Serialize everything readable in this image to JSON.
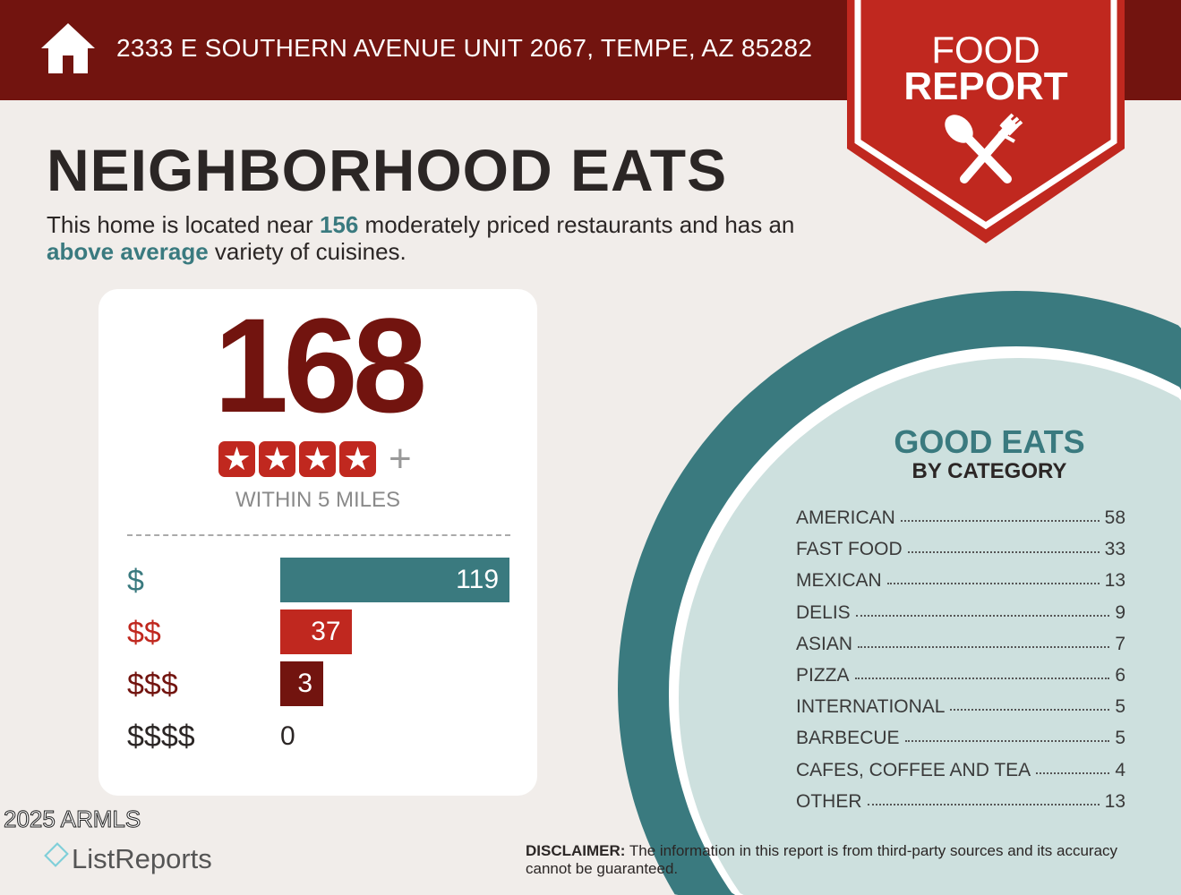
{
  "header": {
    "address": "2333 E SOUTHERN AVENUE UNIT 2067, TEMPE, AZ 85282",
    "icon": "house-icon"
  },
  "banner": {
    "line1": "FOOD",
    "line2": "REPORT",
    "icon": "spoon-fork-icon"
  },
  "title": "NEIGHBORHOOD EATS",
  "intro": {
    "p1": "This home is located near ",
    "count": "156",
    "p2": " moderately priced restaurants and has an ",
    "variety": "above average",
    "p3": " variety of cuisines."
  },
  "summary": {
    "total": "168",
    "stars": 4,
    "plus": "+",
    "within": "WITHIN 5 MILES"
  },
  "price_tiers": [
    {
      "label": "$",
      "value": 119,
      "color": "#3a7a7f"
    },
    {
      "label": "$$",
      "value": 37,
      "color": "#c0281f"
    },
    {
      "label": "$$$",
      "value": 3,
      "color": "#72140f"
    },
    {
      "label": "$$$$",
      "value": 0,
      "color": "#2b2625"
    }
  ],
  "good_eats": {
    "title": "GOOD EATS",
    "subtitle": "BY CATEGORY",
    "categories": [
      {
        "name": "AMERICAN",
        "count": "58"
      },
      {
        "name": "FAST FOOD",
        "count": "33"
      },
      {
        "name": "MEXICAN",
        "count": "13"
      },
      {
        "name": "DELIS",
        "count": "9"
      },
      {
        "name": "ASIAN",
        "count": "7"
      },
      {
        "name": "PIZZA",
        "count": "6"
      },
      {
        "name": "INTERNATIONAL",
        "count": "5"
      },
      {
        "name": "BARBECUE",
        "count": "5"
      },
      {
        "name": "CAFES, COFFEE AND TEA",
        "count": "4"
      },
      {
        "name": "OTHER",
        "count": "13"
      }
    ]
  },
  "footer": {
    "logo": "ListReports",
    "copyright": "2025 ARMLS",
    "disclaimer_label": "DISCLAIMER:",
    "disclaimer": " The information in this report is from third-party sources and its accuracy cannot be guaranteed."
  },
  "colors": {
    "dark_red": "#72140f",
    "red": "#c0281f",
    "teal": "#3a7a7f",
    "light_teal": "#cde0de"
  }
}
